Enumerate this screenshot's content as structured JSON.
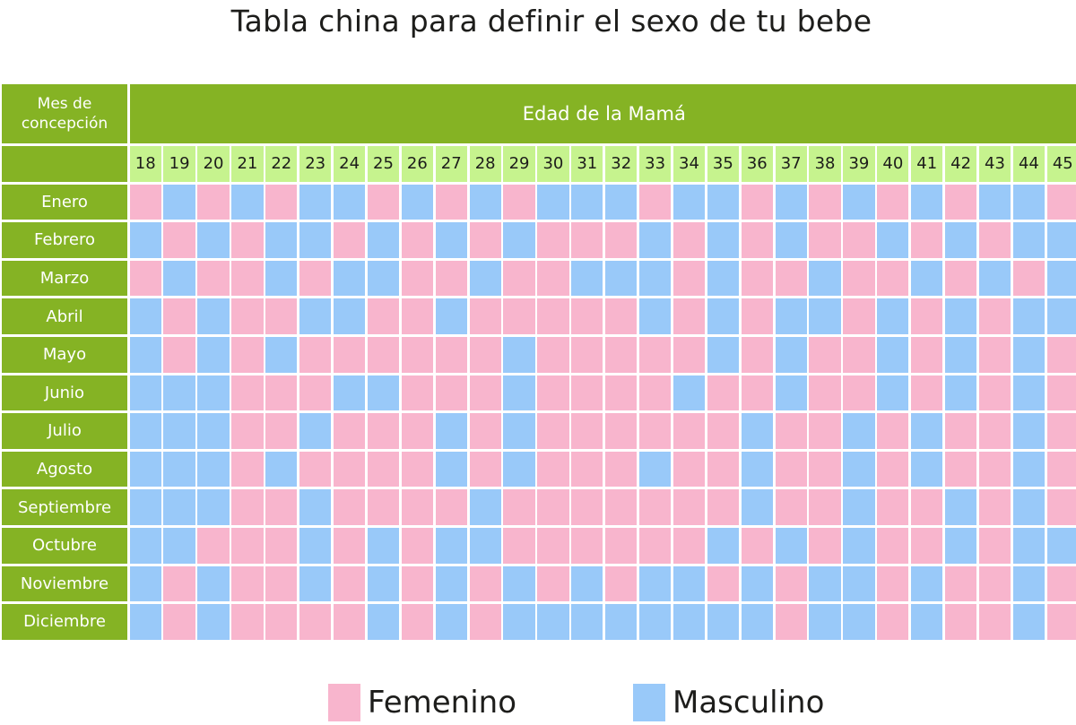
{
  "title": "Tabla china para definir el sexo de tu bebe",
  "colors": {
    "header_green": "#85b324",
    "age_green": "#c6f38e",
    "femenino": "#f8b5cd",
    "masculino": "#99c9f9"
  },
  "chart_data": {
    "type": "heatmap",
    "title": "Tabla china para definir el sexo de tu bebe",
    "row_header_label": "Mes de concepción",
    "column_header_label": "Edad de la Mamá",
    "ages": [
      "18",
      "19",
      "20",
      "21",
      "22",
      "23",
      "24",
      "25",
      "26",
      "27",
      "28",
      "29",
      "30",
      "31",
      "32",
      "33",
      "34",
      "35",
      "36",
      "37",
      "38",
      "39",
      "40",
      "41",
      "42",
      "43",
      "44",
      "45"
    ],
    "months": [
      "Enero",
      "Febrero",
      "Marzo",
      "Abril",
      "Mayo",
      "Junio",
      "Julio",
      "Agosto",
      "Septiembre",
      "Octubre",
      "Noviembre",
      "Diciembre"
    ],
    "legend": [
      {
        "code": "F",
        "label": "Femenino",
        "color": "#f8b5cd"
      },
      {
        "code": "M",
        "label": "Masculino",
        "color": "#99c9f9"
      }
    ],
    "values": [
      [
        "F",
        "M",
        "F",
        "M",
        "F",
        "M",
        "M",
        "F",
        "M",
        "F",
        "M",
        "F",
        "M",
        "M",
        "M",
        "F",
        "M",
        "M",
        "F",
        "M",
        "F",
        "M",
        "F",
        "M",
        "F",
        "M",
        "M",
        "F"
      ],
      [
        "M",
        "F",
        "M",
        "F",
        "M",
        "M",
        "F",
        "M",
        "F",
        "M",
        "F",
        "M",
        "F",
        "F",
        "F",
        "M",
        "F",
        "M",
        "F",
        "M",
        "F",
        "F",
        "M",
        "F",
        "M",
        "F",
        "M",
        "M"
      ],
      [
        "F",
        "M",
        "F",
        "F",
        "M",
        "F",
        "M",
        "M",
        "F",
        "F",
        "M",
        "F",
        "F",
        "M",
        "M",
        "M",
        "F",
        "M",
        "F",
        "F",
        "M",
        "F",
        "F",
        "M",
        "F",
        "M",
        "F",
        "M"
      ],
      [
        "M",
        "F",
        "M",
        "F",
        "F",
        "M",
        "M",
        "F",
        "F",
        "M",
        "F",
        "F",
        "F",
        "F",
        "F",
        "M",
        "F",
        "M",
        "F",
        "M",
        "M",
        "F",
        "M",
        "F",
        "M",
        "F",
        "M",
        "M"
      ],
      [
        "M",
        "F",
        "M",
        "F",
        "M",
        "F",
        "F",
        "F",
        "F",
        "F",
        "F",
        "M",
        "F",
        "F",
        "F",
        "F",
        "F",
        "M",
        "F",
        "M",
        "F",
        "F",
        "M",
        "F",
        "M",
        "F",
        "M",
        "F"
      ],
      [
        "M",
        "M",
        "M",
        "F",
        "F",
        "F",
        "M",
        "M",
        "F",
        "F",
        "F",
        "M",
        "F",
        "F",
        "F",
        "F",
        "M",
        "F",
        "F",
        "M",
        "F",
        "F",
        "M",
        "F",
        "M",
        "F",
        "M",
        "F"
      ],
      [
        "M",
        "M",
        "M",
        "F",
        "F",
        "M",
        "F",
        "F",
        "F",
        "M",
        "F",
        "M",
        "F",
        "F",
        "F",
        "F",
        "F",
        "F",
        "M",
        "F",
        "F",
        "M",
        "F",
        "M",
        "F",
        "F",
        "M",
        "F"
      ],
      [
        "M",
        "M",
        "M",
        "F",
        "M",
        "F",
        "F",
        "F",
        "F",
        "M",
        "F",
        "M",
        "F",
        "F",
        "F",
        "M",
        "F",
        "F",
        "M",
        "F",
        "F",
        "M",
        "F",
        "M",
        "F",
        "F",
        "M",
        "F"
      ],
      [
        "M",
        "M",
        "M",
        "F",
        "F",
        "M",
        "F",
        "F",
        "F",
        "F",
        "M",
        "F",
        "F",
        "F",
        "F",
        "F",
        "F",
        "F",
        "M",
        "F",
        "F",
        "M",
        "F",
        "F",
        "M",
        "F",
        "M",
        "F"
      ],
      [
        "M",
        "M",
        "F",
        "F",
        "F",
        "M",
        "F",
        "M",
        "F",
        "M",
        "M",
        "F",
        "F",
        "F",
        "F",
        "F",
        "F",
        "M",
        "F",
        "M",
        "F",
        "M",
        "F",
        "F",
        "M",
        "F",
        "M",
        "M"
      ],
      [
        "M",
        "F",
        "M",
        "F",
        "F",
        "M",
        "F",
        "M",
        "F",
        "M",
        "F",
        "M",
        "F",
        "M",
        "F",
        "M",
        "M",
        "F",
        "M",
        "F",
        "M",
        "M",
        "F",
        "M",
        "F",
        "F",
        "M",
        "F"
      ],
      [
        "M",
        "F",
        "M",
        "F",
        "F",
        "F",
        "F",
        "M",
        "F",
        "M",
        "F",
        "M",
        "M",
        "M",
        "M",
        "M",
        "M",
        "M",
        "M",
        "F",
        "M",
        "M",
        "F",
        "M",
        "F",
        "F",
        "M",
        "F"
      ]
    ]
  }
}
